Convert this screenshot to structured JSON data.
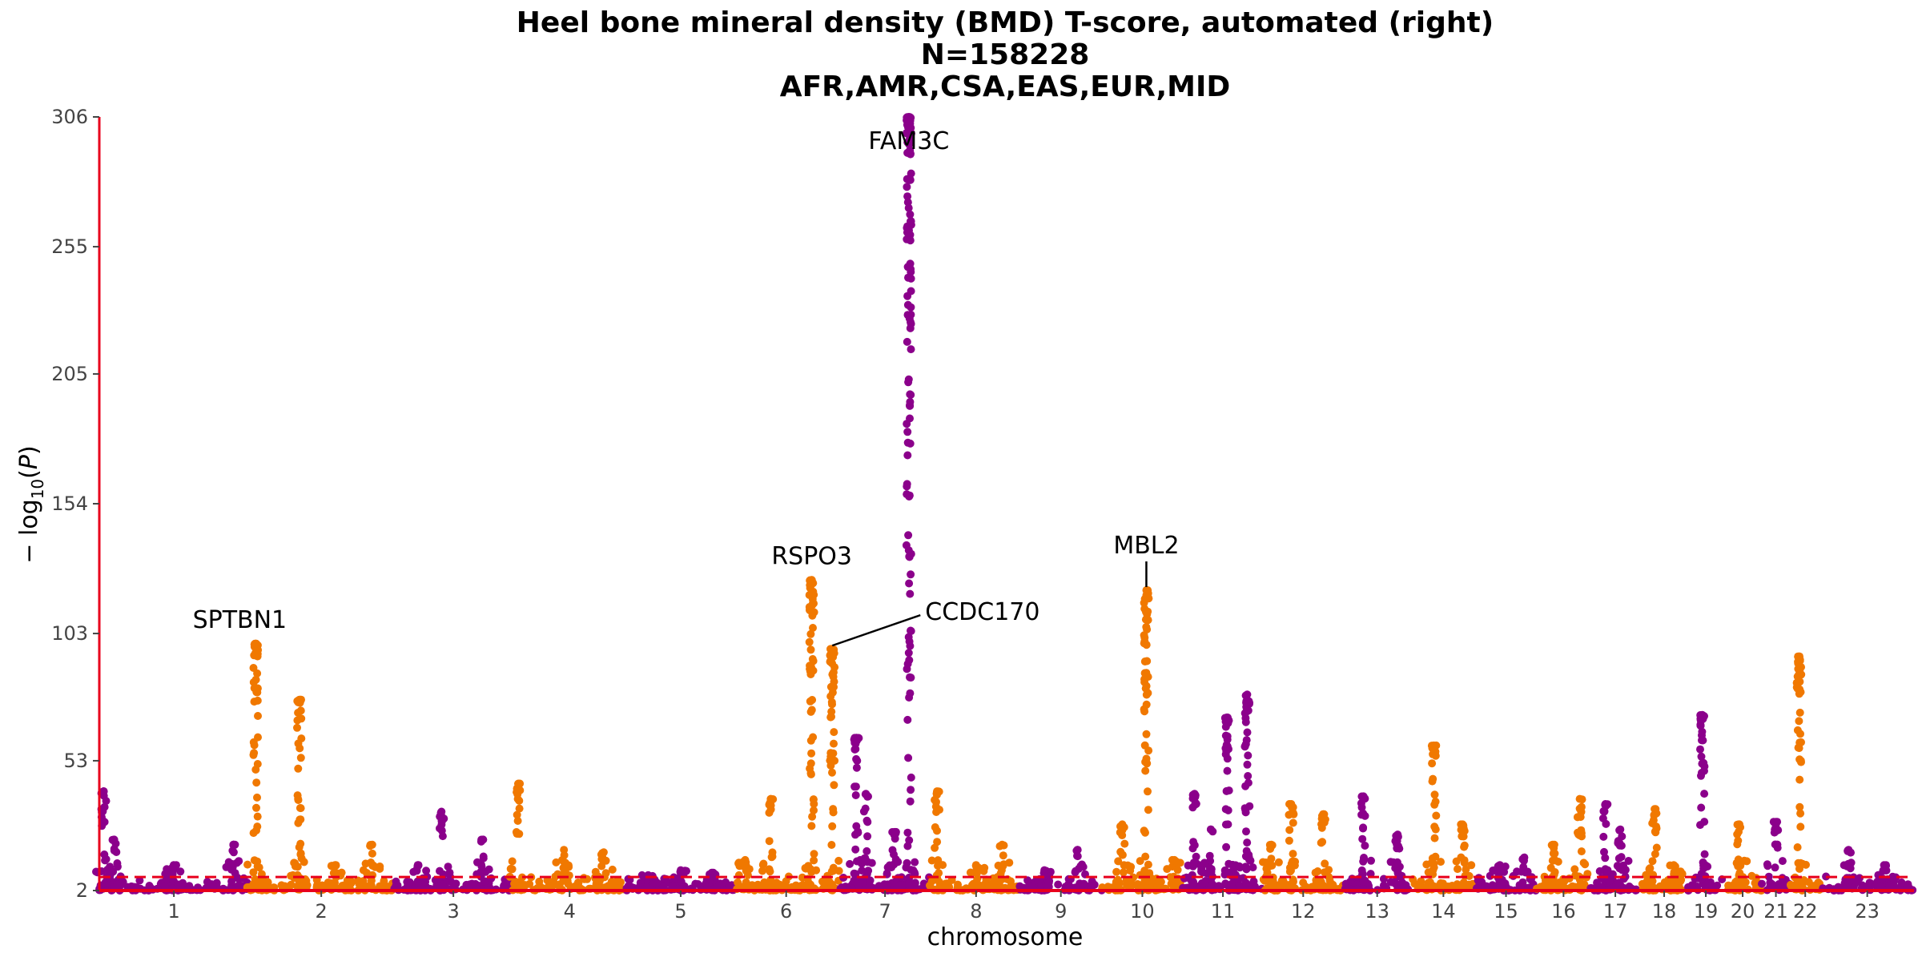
{
  "chart_data": {
    "type": "scatter",
    "title": [
      "Heel bone mineral density (BMD) T-score, automated (right)",
      "N=158228",
      "AFR,AMR,CSA,EAS,EUR,MID"
    ],
    "xlabel": "chromosome",
    "ylabel": "−log10(P)",
    "ylim": [
      2,
      306
    ],
    "yticks": [
      2,
      53,
      103,
      154,
      205,
      255,
      306
    ],
    "grid": false,
    "legend": "none",
    "colors": {
      "odd_chromosome": "#8b008b",
      "even_chromosome": "#f07800",
      "threshold": "#e8001c",
      "axis": "#e8001c"
    },
    "significance_threshold": 7.3,
    "chromosomes": [
      {
        "label": "1",
        "peaks": [
          {
            "pos": 0.03,
            "y": 41
          },
          {
            "pos": 0.1,
            "y": 22
          },
          {
            "pos": 0.9,
            "y": 20
          },
          {
            "pos": 0.5,
            "y": 12
          }
        ]
      },
      {
        "label": "2",
        "peaks": [
          {
            "pos": 0.05,
            "y": 99
          },
          {
            "pos": 0.35,
            "y": 77
          },
          {
            "pos": 0.6,
            "y": 12
          },
          {
            "pos": 0.85,
            "y": 20
          }
        ]
      },
      {
        "label": "3",
        "peaks": [
          {
            "pos": 0.4,
            "y": 33
          },
          {
            "pos": 0.75,
            "y": 22
          },
          {
            "pos": 0.2,
            "y": 12
          }
        ]
      },
      {
        "label": "4",
        "peaks": [
          {
            "pos": 0.05,
            "y": 44
          },
          {
            "pos": 0.45,
            "y": 18
          },
          {
            "pos": 0.8,
            "y": 17
          }
        ]
      },
      {
        "label": "5",
        "peaks": [
          {
            "pos": 0.5,
            "y": 10
          },
          {
            "pos": 0.2,
            "y": 8
          },
          {
            "pos": 0.8,
            "y": 9
          }
        ]
      },
      {
        "label": "6",
        "peaks": [
          {
            "pos": 0.1,
            "y": 14
          },
          {
            "pos": 0.35,
            "y": 38
          },
          {
            "pos": 0.75,
            "y": 124
          },
          {
            "pos": 0.95,
            "y": 97
          }
        ]
      },
      {
        "label": "7",
        "peaks": [
          {
            "pos": 0.2,
            "y": 62
          },
          {
            "pos": 0.3,
            "y": 40
          },
          {
            "pos": 0.6,
            "y": 25
          },
          {
            "pos": 0.75,
            "y": 306
          }
        ]
      },
      {
        "label": "8",
        "peaks": [
          {
            "pos": 0.05,
            "y": 41
          },
          {
            "pos": 0.5,
            "y": 12
          },
          {
            "pos": 0.8,
            "y": 20
          }
        ]
      },
      {
        "label": "9",
        "peaks": [
          {
            "pos": 0.3,
            "y": 10
          },
          {
            "pos": 0.7,
            "y": 18
          }
        ]
      },
      {
        "label": "10",
        "peaks": [
          {
            "pos": 0.25,
            "y": 28
          },
          {
            "pos": 0.55,
            "y": 120
          },
          {
            "pos": 0.9,
            "y": 14
          }
        ]
      },
      {
        "label": "11",
        "peaks": [
          {
            "pos": 0.15,
            "y": 40
          },
          {
            "pos": 0.55,
            "y": 70
          },
          {
            "pos": 0.8,
            "y": 79
          },
          {
            "pos": 0.35,
            "y": 26
          }
        ]
      },
      {
        "label": "12",
        "peaks": [
          {
            "pos": 0.1,
            "y": 20
          },
          {
            "pos": 0.35,
            "y": 36
          },
          {
            "pos": 0.75,
            "y": 32
          }
        ]
      },
      {
        "label": "13",
        "peaks": [
          {
            "pos": 0.3,
            "y": 39
          },
          {
            "pos": 0.8,
            "y": 24
          }
        ]
      },
      {
        "label": "14",
        "peaks": [
          {
            "pos": 0.35,
            "y": 59
          },
          {
            "pos": 0.8,
            "y": 28
          }
        ]
      },
      {
        "label": "15",
        "peaks": [
          {
            "pos": 0.4,
            "y": 12
          },
          {
            "pos": 0.8,
            "y": 15
          }
        ]
      },
      {
        "label": "16",
        "peaks": [
          {
            "pos": 0.3,
            "y": 20
          },
          {
            "pos": 0.8,
            "y": 38
          }
        ]
      },
      {
        "label": "17",
        "peaks": [
          {
            "pos": 0.3,
            "y": 36
          },
          {
            "pos": 0.6,
            "y": 26
          }
        ]
      },
      {
        "label": "18",
        "peaks": [
          {
            "pos": 0.3,
            "y": 34
          },
          {
            "pos": 0.7,
            "y": 12
          }
        ]
      },
      {
        "label": "19",
        "peaks": [
          {
            "pos": 0.4,
            "y": 71
          }
        ]
      },
      {
        "label": "20",
        "peaks": [
          {
            "pos": 0.4,
            "y": 28
          }
        ]
      },
      {
        "label": "21",
        "peaks": [
          {
            "pos": 0.5,
            "y": 29
          }
        ]
      },
      {
        "label": "22",
        "peaks": [
          {
            "pos": 0.3,
            "y": 94
          }
        ]
      },
      {
        "label": "23",
        "peaks": [
          {
            "pos": 0.3,
            "y": 18
          },
          {
            "pos": 0.7,
            "y": 12
          }
        ]
      }
    ],
    "annotations": [
      {
        "gene": "SPTBN1",
        "chrom": "2",
        "pos": 0.05,
        "y": 99
      },
      {
        "gene": "RSPO3",
        "chrom": "6",
        "pos": 0.75,
        "y": 124
      },
      {
        "gene": "CCDC170",
        "chrom": "6",
        "pos": 0.95,
        "y": 97
      },
      {
        "gene": "FAM3C",
        "chrom": "7",
        "pos": 0.75,
        "y": 306
      },
      {
        "gene": "MBL2",
        "chrom": "10",
        "pos": 0.55,
        "y": 120
      }
    ]
  }
}
